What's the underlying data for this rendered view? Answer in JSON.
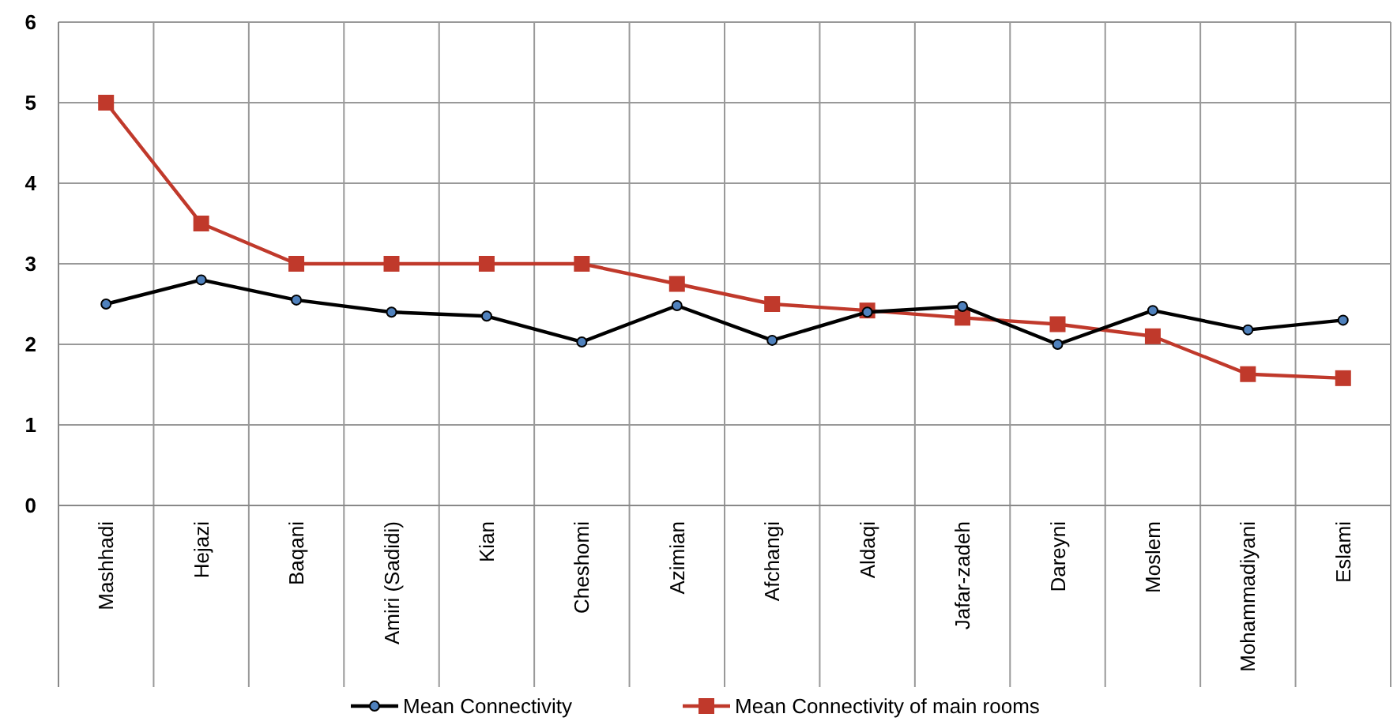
{
  "chart_data": {
    "type": "line",
    "categories": [
      "Mashhadi",
      "Hejazi",
      "Baqani",
      "Amiri (Sadidi)",
      "Kian",
      "Cheshomi",
      "Azimian",
      "Afchangi",
      "Aldaqi",
      "Jafar-zadeh",
      "Dareyni",
      "Moslem",
      "Mohammadiyani",
      "Eslami"
    ],
    "series": [
      {
        "name": "Mean Connectivity",
        "color": "#000000",
        "marker": "circle",
        "values": [
          2.5,
          2.8,
          2.55,
          2.4,
          2.35,
          2.03,
          2.48,
          2.05,
          2.4,
          2.47,
          2.0,
          2.42,
          2.18,
          2.3
        ]
      },
      {
        "name": "Mean Connectivity of main rooms",
        "color": "#c0392b",
        "marker": "square",
        "values": [
          5,
          3.5,
          3,
          3,
          3,
          3,
          2.75,
          2.5,
          2.42,
          2.33,
          2.25,
          2.1,
          1.63,
          1.58
        ]
      }
    ],
    "ylim": [
      0,
      6
    ],
    "yticks": [
      0,
      1,
      2,
      3,
      4,
      5,
      6
    ],
    "grid": true,
    "legend": "bottom",
    "line_style": "solid"
  }
}
